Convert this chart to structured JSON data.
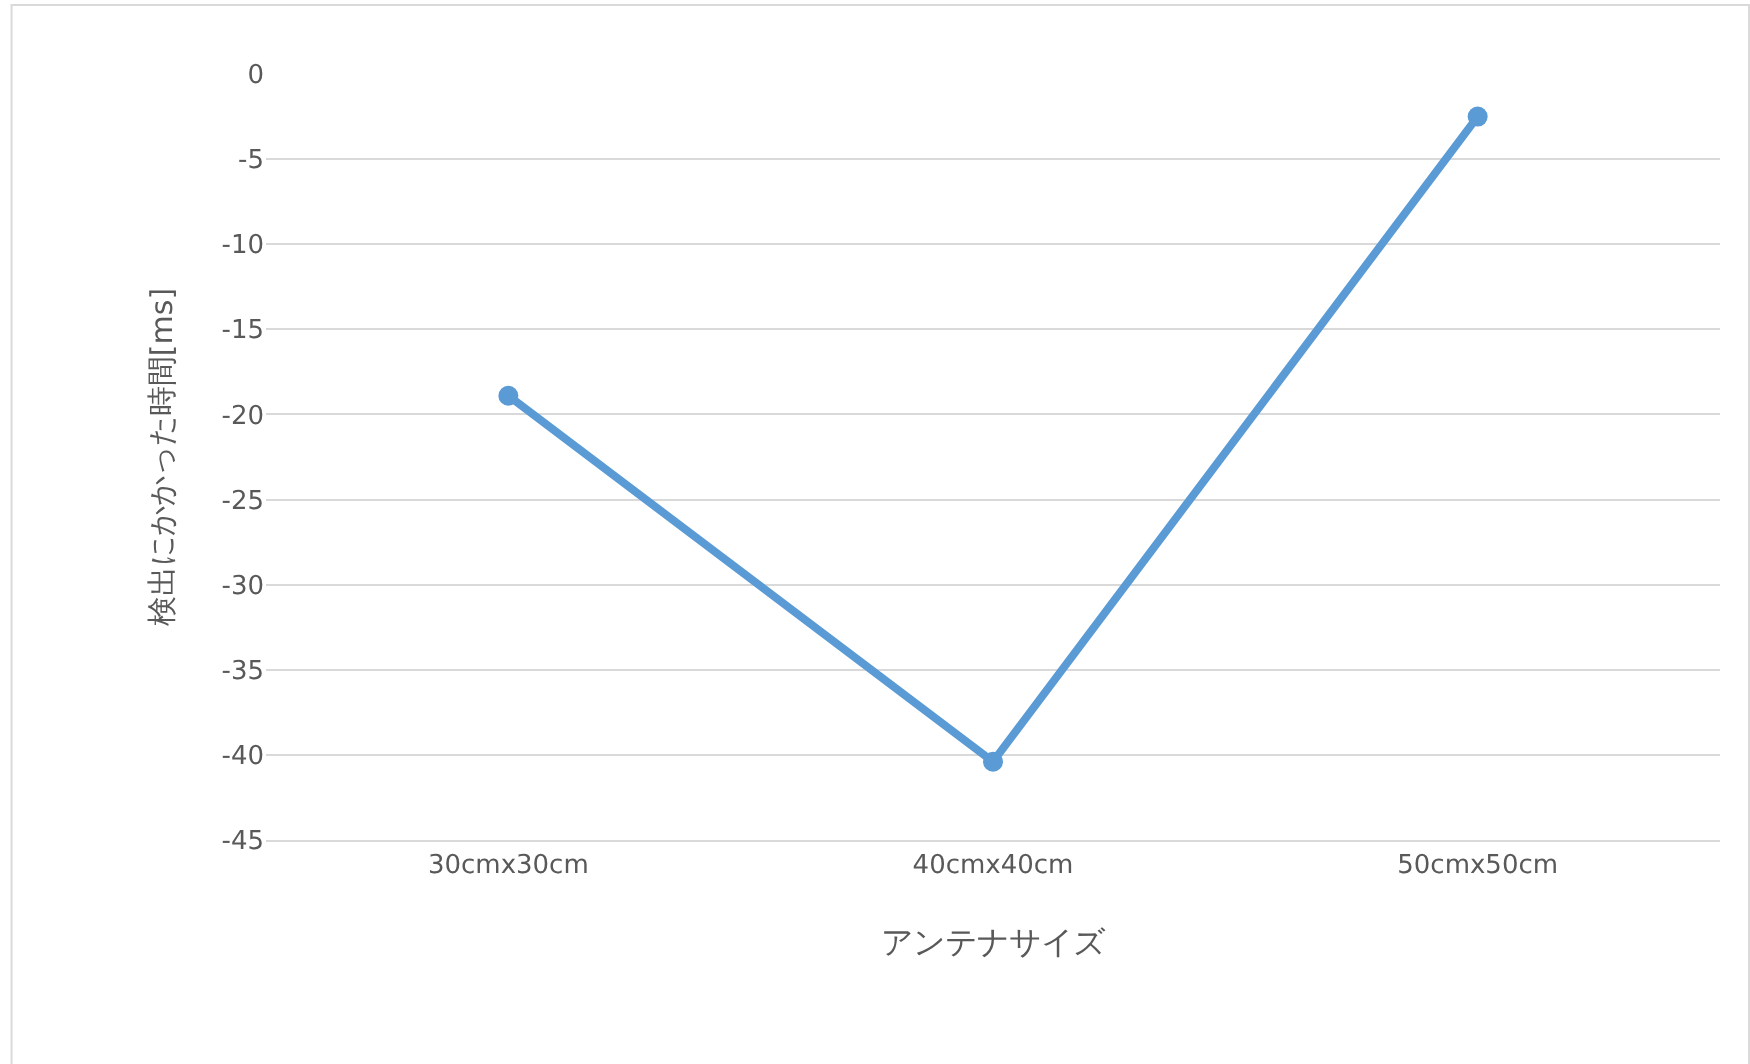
{
  "chart_data": {
    "type": "line",
    "xlabel": "アンテナサイズ",
    "ylabel": "検出にかかった時間[ms]",
    "categories": [
      "30cmx30cm",
      "40cmx40cm",
      "50cmx50cm"
    ],
    "series": [
      {
        "color": "#5b9bd5",
        "values": [
          -18.9,
          -40.4,
          -2.5
        ]
      }
    ],
    "ylim": [
      -45,
      0
    ],
    "yticks": [
      0,
      -5,
      -10,
      -15,
      -20,
      -25,
      -30,
      -35,
      -40,
      -45
    ],
    "grid": "y",
    "legend": false,
    "marker": "circle",
    "line_style": "solid"
  }
}
